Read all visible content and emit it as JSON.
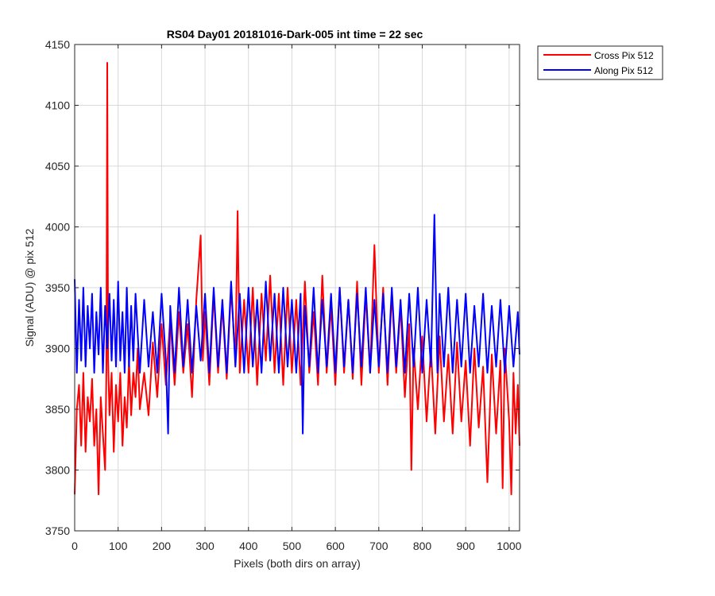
{
  "chart_data": {
    "type": "line",
    "title": "RS04 Day01 20181016-Dark-005 int time = 22 sec",
    "xlabel": "Pixels (both dirs on array)",
    "ylabel": "Signal (ADU) @ pix 512",
    "xlim": [
      0,
      1024
    ],
    "ylim": [
      3750,
      4150
    ],
    "xticks": [
      0,
      100,
      200,
      300,
      400,
      500,
      600,
      700,
      800,
      900,
      1000
    ],
    "yticks": [
      3750,
      3800,
      3850,
      3900,
      3950,
      4000,
      4050,
      4100,
      4150
    ],
    "grid": true,
    "legend_position": "outside-top-right",
    "series": [
      {
        "name": "Cross Pix 512",
        "color": "#ff0000",
        "points": [
          [
            0,
            3780
          ],
          [
            5,
            3850
          ],
          [
            10,
            3870
          ],
          [
            15,
            3820
          ],
          [
            20,
            3880
          ],
          [
            25,
            3815
          ],
          [
            30,
            3860
          ],
          [
            35,
            3840
          ],
          [
            40,
            3875
          ],
          [
            45,
            3820
          ],
          [
            50,
            3850
          ],
          [
            55,
            3780
          ],
          [
            60,
            3860
          ],
          [
            65,
            3830
          ],
          [
            70,
            3800
          ],
          [
            73,
            3880
          ],
          [
            75,
            4135
          ],
          [
            77,
            3890
          ],
          [
            80,
            3845
          ],
          [
            85,
            3880
          ],
          [
            90,
            3815
          ],
          [
            95,
            3870
          ],
          [
            100,
            3840
          ],
          [
            105,
            3880
          ],
          [
            110,
            3820
          ],
          [
            115,
            3860
          ],
          [
            120,
            3835
          ],
          [
            125,
            3890
          ],
          [
            130,
            3845
          ],
          [
            135,
            3880
          ],
          [
            140,
            3860
          ],
          [
            145,
            3900
          ],
          [
            150,
            3850
          ],
          [
            160,
            3880
          ],
          [
            170,
            3845
          ],
          [
            180,
            3905
          ],
          [
            190,
            3860
          ],
          [
            200,
            3920
          ],
          [
            210,
            3870
          ],
          [
            220,
            3925
          ],
          [
            230,
            3870
          ],
          [
            240,
            3930
          ],
          [
            250,
            3880
          ],
          [
            260,
            3920
          ],
          [
            270,
            3860
          ],
          [
            280,
            3940
          ],
          [
            290,
            3993
          ],
          [
            295,
            3890
          ],
          [
            300,
            3930
          ],
          [
            310,
            3870
          ],
          [
            320,
            3945
          ],
          [
            330,
            3880
          ],
          [
            340,
            3935
          ],
          [
            350,
            3875
          ],
          [
            360,
            3950
          ],
          [
            370,
            3890
          ],
          [
            375,
            4013
          ],
          [
            380,
            3880
          ],
          [
            390,
            3940
          ],
          [
            400,
            3880
          ],
          [
            410,
            3950
          ],
          [
            420,
            3870
          ],
          [
            430,
            3945
          ],
          [
            440,
            3890
          ],
          [
            450,
            3960
          ],
          [
            460,
            3880
          ],
          [
            470,
            3945
          ],
          [
            480,
            3870
          ],
          [
            490,
            3950
          ],
          [
            500,
            3880
          ],
          [
            510,
            3940
          ],
          [
            520,
            3870
          ],
          [
            530,
            3955
          ],
          [
            540,
            3880
          ],
          [
            550,
            3930
          ],
          [
            560,
            3870
          ],
          [
            570,
            3960
          ],
          [
            580,
            3880
          ],
          [
            590,
            3935
          ],
          [
            600,
            3870
          ],
          [
            610,
            3950
          ],
          [
            620,
            3880
          ],
          [
            630,
            3940
          ],
          [
            640,
            3875
          ],
          [
            650,
            3955
          ],
          [
            660,
            3870
          ],
          [
            670,
            3945
          ],
          [
            680,
            3880
          ],
          [
            690,
            3985
          ],
          [
            700,
            3880
          ],
          [
            710,
            3950
          ],
          [
            720,
            3870
          ],
          [
            730,
            3945
          ],
          [
            740,
            3880
          ],
          [
            750,
            3935
          ],
          [
            760,
            3860
          ],
          [
            770,
            3920
          ],
          [
            775,
            3800
          ],
          [
            780,
            3900
          ],
          [
            790,
            3850
          ],
          [
            800,
            3910
          ],
          [
            810,
            3840
          ],
          [
            820,
            3900
          ],
          [
            830,
            3830
          ],
          [
            840,
            3910
          ],
          [
            850,
            3840
          ],
          [
            860,
            3895
          ],
          [
            870,
            3830
          ],
          [
            880,
            3905
          ],
          [
            890,
            3840
          ],
          [
            900,
            3890
          ],
          [
            910,
            3820
          ],
          [
            920,
            3900
          ],
          [
            930,
            3835
          ],
          [
            940,
            3885
          ],
          [
            950,
            3790
          ],
          [
            960,
            3895
          ],
          [
            970,
            3830
          ],
          [
            980,
            3890
          ],
          [
            985,
            3785
          ],
          [
            990,
            3900
          ],
          [
            1000,
            3840
          ],
          [
            1005,
            3780
          ],
          [
            1010,
            3880
          ],
          [
            1015,
            3830
          ],
          [
            1020,
            3870
          ],
          [
            1024,
            3820
          ]
        ]
      },
      {
        "name": "Along Pix 512",
        "color": "#0000ff",
        "points": [
          [
            0,
            3957
          ],
          [
            5,
            3880
          ],
          [
            10,
            3940
          ],
          [
            15,
            3890
          ],
          [
            20,
            3950
          ],
          [
            25,
            3885
          ],
          [
            30,
            3935
          ],
          [
            35,
            3900
          ],
          [
            40,
            3945
          ],
          [
            45,
            3880
          ],
          [
            50,
            3930
          ],
          [
            55,
            3895
          ],
          [
            60,
            3950
          ],
          [
            65,
            3880
          ],
          [
            70,
            3935
          ],
          [
            75,
            3900
          ],
          [
            80,
            3945
          ],
          [
            85,
            3890
          ],
          [
            90,
            3940
          ],
          [
            95,
            3885
          ],
          [
            100,
            3955
          ],
          [
            105,
            3890
          ],
          [
            110,
            3930
          ],
          [
            115,
            3880
          ],
          [
            120,
            3950
          ],
          [
            125,
            3885
          ],
          [
            130,
            3935
          ],
          [
            135,
            3890
          ],
          [
            140,
            3945
          ],
          [
            150,
            3880
          ],
          [
            160,
            3940
          ],
          [
            170,
            3885
          ],
          [
            180,
            3930
          ],
          [
            190,
            3880
          ],
          [
            200,
            3945
          ],
          [
            210,
            3890
          ],
          [
            215,
            3830
          ],
          [
            220,
            3935
          ],
          [
            230,
            3880
          ],
          [
            240,
            3950
          ],
          [
            250,
            3885
          ],
          [
            260,
            3940
          ],
          [
            270,
            3880
          ],
          [
            280,
            3935
          ],
          [
            290,
            3890
          ],
          [
            300,
            3945
          ],
          [
            310,
            3880
          ],
          [
            320,
            3950
          ],
          [
            330,
            3885
          ],
          [
            340,
            3940
          ],
          [
            350,
            3880
          ],
          [
            360,
            3955
          ],
          [
            370,
            3885
          ],
          [
            380,
            3945
          ],
          [
            390,
            3880
          ],
          [
            400,
            3950
          ],
          [
            410,
            3885
          ],
          [
            420,
            3940
          ],
          [
            430,
            3880
          ],
          [
            440,
            3955
          ],
          [
            450,
            3890
          ],
          [
            460,
            3945
          ],
          [
            470,
            3880
          ],
          [
            480,
            3950
          ],
          [
            490,
            3885
          ],
          [
            500,
            3940
          ],
          [
            510,
            3880
          ],
          [
            520,
            3945
          ],
          [
            525,
            3830
          ],
          [
            530,
            3935
          ],
          [
            540,
            3885
          ],
          [
            550,
            3950
          ],
          [
            560,
            3880
          ],
          [
            570,
            3940
          ],
          [
            580,
            3885
          ],
          [
            590,
            3945
          ],
          [
            600,
            3880
          ],
          [
            610,
            3950
          ],
          [
            620,
            3885
          ],
          [
            630,
            3940
          ],
          [
            640,
            3880
          ],
          [
            650,
            3945
          ],
          [
            660,
            3885
          ],
          [
            670,
            3950
          ],
          [
            680,
            3880
          ],
          [
            690,
            3940
          ],
          [
            700,
            3885
          ],
          [
            710,
            3945
          ],
          [
            720,
            3880
          ],
          [
            730,
            3950
          ],
          [
            740,
            3885
          ],
          [
            750,
            3940
          ],
          [
            760,
            3880
          ],
          [
            770,
            3945
          ],
          [
            780,
            3885
          ],
          [
            790,
            3950
          ],
          [
            800,
            3880
          ],
          [
            810,
            3940
          ],
          [
            820,
            3885
          ],
          [
            828,
            4010
          ],
          [
            835,
            3880
          ],
          [
            840,
            3945
          ],
          [
            850,
            3885
          ],
          [
            860,
            3950
          ],
          [
            870,
            3880
          ],
          [
            880,
            3940
          ],
          [
            890,
            3885
          ],
          [
            900,
            3945
          ],
          [
            910,
            3880
          ],
          [
            920,
            3935
          ],
          [
            930,
            3885
          ],
          [
            940,
            3945
          ],
          [
            950,
            3880
          ],
          [
            960,
            3935
          ],
          [
            970,
            3885
          ],
          [
            980,
            3940
          ],
          [
            990,
            3880
          ],
          [
            1000,
            3935
          ],
          [
            1010,
            3885
          ],
          [
            1020,
            3930
          ],
          [
            1024,
            3895
          ]
        ]
      }
    ]
  }
}
